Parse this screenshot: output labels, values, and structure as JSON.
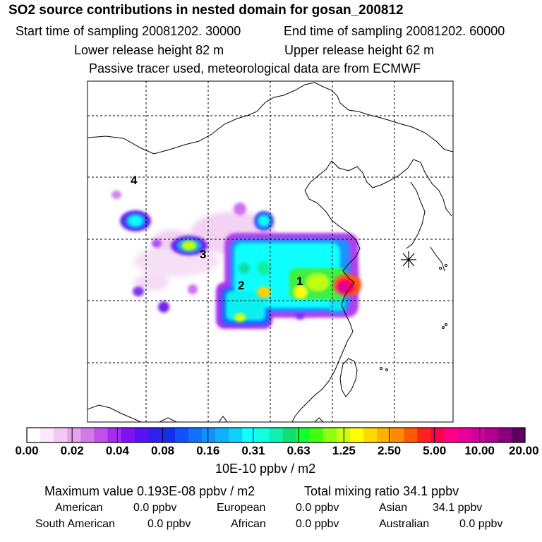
{
  "header": {
    "title": "SO2 source contributions in nested domain for gosan_200812",
    "start": "Start time of sampling 20081202. 30000",
    "end": "End time of sampling 20081202. 60000",
    "lower": "Lower release height   82 m",
    "upper": "Upper release height   62 m",
    "tracer": "Passive tracer used, meteorological data are from ECMWF"
  },
  "map": {
    "region_labels": [
      {
        "id": "1",
        "text": "1"
      },
      {
        "id": "2",
        "text": "2"
      },
      {
        "id": "3",
        "text": "3"
      },
      {
        "id": "4",
        "text": "4"
      }
    ],
    "receptor_marker": "asterisk-icon"
  },
  "colorbar": {
    "tick_labels": [
      "0.00",
      "0.02",
      "0.04",
      "0.08",
      "0.16",
      "0.31",
      "0.63",
      "1.25",
      "2.50",
      "5.00",
      "10.00",
      "20.00"
    ],
    "colors": [
      "#ffffff",
      "#fbe8fb",
      "#f3c8f3",
      "#e6a0ec",
      "#d27ae6",
      "#c050e6",
      "#a52df0",
      "#7f12f5",
      "#5a12f5",
      "#3020f0",
      "#1030f0",
      "#1050ff",
      "#1070ff",
      "#1090ff",
      "#10b0ff",
      "#10d0ff",
      "#10ffff",
      "#10ffe0",
      "#10f0b0",
      "#10e070",
      "#10ff30",
      "#40ff10",
      "#90ff10",
      "#c8ff10",
      "#ffff00",
      "#ffd800",
      "#ffb000",
      "#ff8a00",
      "#ff5a00",
      "#ff2020",
      "#ff0050",
      "#ff0088",
      "#e80098",
      "#d0009a",
      "#b0008e",
      "#8c0080",
      "#600060"
    ],
    "units": "10E-10 ppbv / m2"
  },
  "summary": {
    "max_text": "Maximum value  0.193E-08 ppbv / m2",
    "total_text": "Total mixing ratio       34.1 ppbv",
    "regions": [
      {
        "name": "American",
        "value": "0.0 ppbv"
      },
      {
        "name": "European",
        "value": "0.0 ppbv"
      },
      {
        "name": "Asian",
        "value": "34.1 ppbv"
      },
      {
        "name": "South American",
        "value": "0.0 ppbv"
      },
      {
        "name": "African",
        "value": "0.0 ppbv"
      },
      {
        "name": "Australian",
        "value": "0.0 ppbv"
      }
    ]
  }
}
